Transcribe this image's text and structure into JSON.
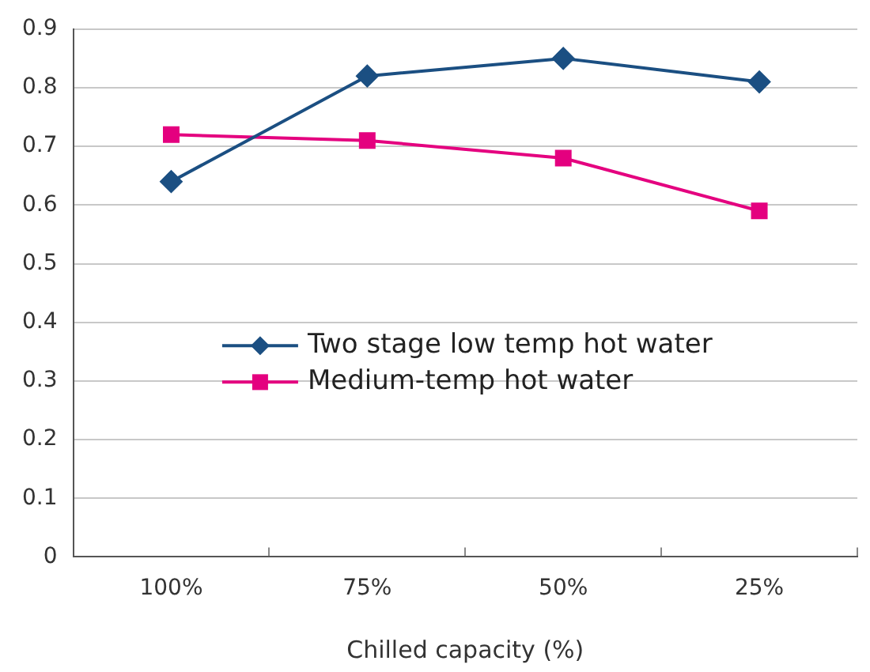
{
  "chart_data": {
    "type": "line",
    "xlabel": "Chilled capacity (%)",
    "categories": [
      "100%",
      "75%",
      "50%",
      "25%"
    ],
    "series": [
      {
        "name": "Two stage low temp hot water",
        "color": "#1b4f82",
        "marker": "diamond",
        "values": [
          0.64,
          0.82,
          0.85,
          0.81
        ]
      },
      {
        "name": "Medium-temp hot water",
        "color": "#e4007f",
        "marker": "square",
        "values": [
          0.72,
          0.71,
          0.68,
          0.59
        ]
      }
    ],
    "ylim": [
      0,
      0.9
    ],
    "yticks": [
      0,
      0.1,
      0.2,
      0.3,
      0.4,
      0.5,
      0.6,
      0.7,
      0.8,
      0.9
    ],
    "grid": "y",
    "legend": "left",
    "line_style": "solid"
  }
}
